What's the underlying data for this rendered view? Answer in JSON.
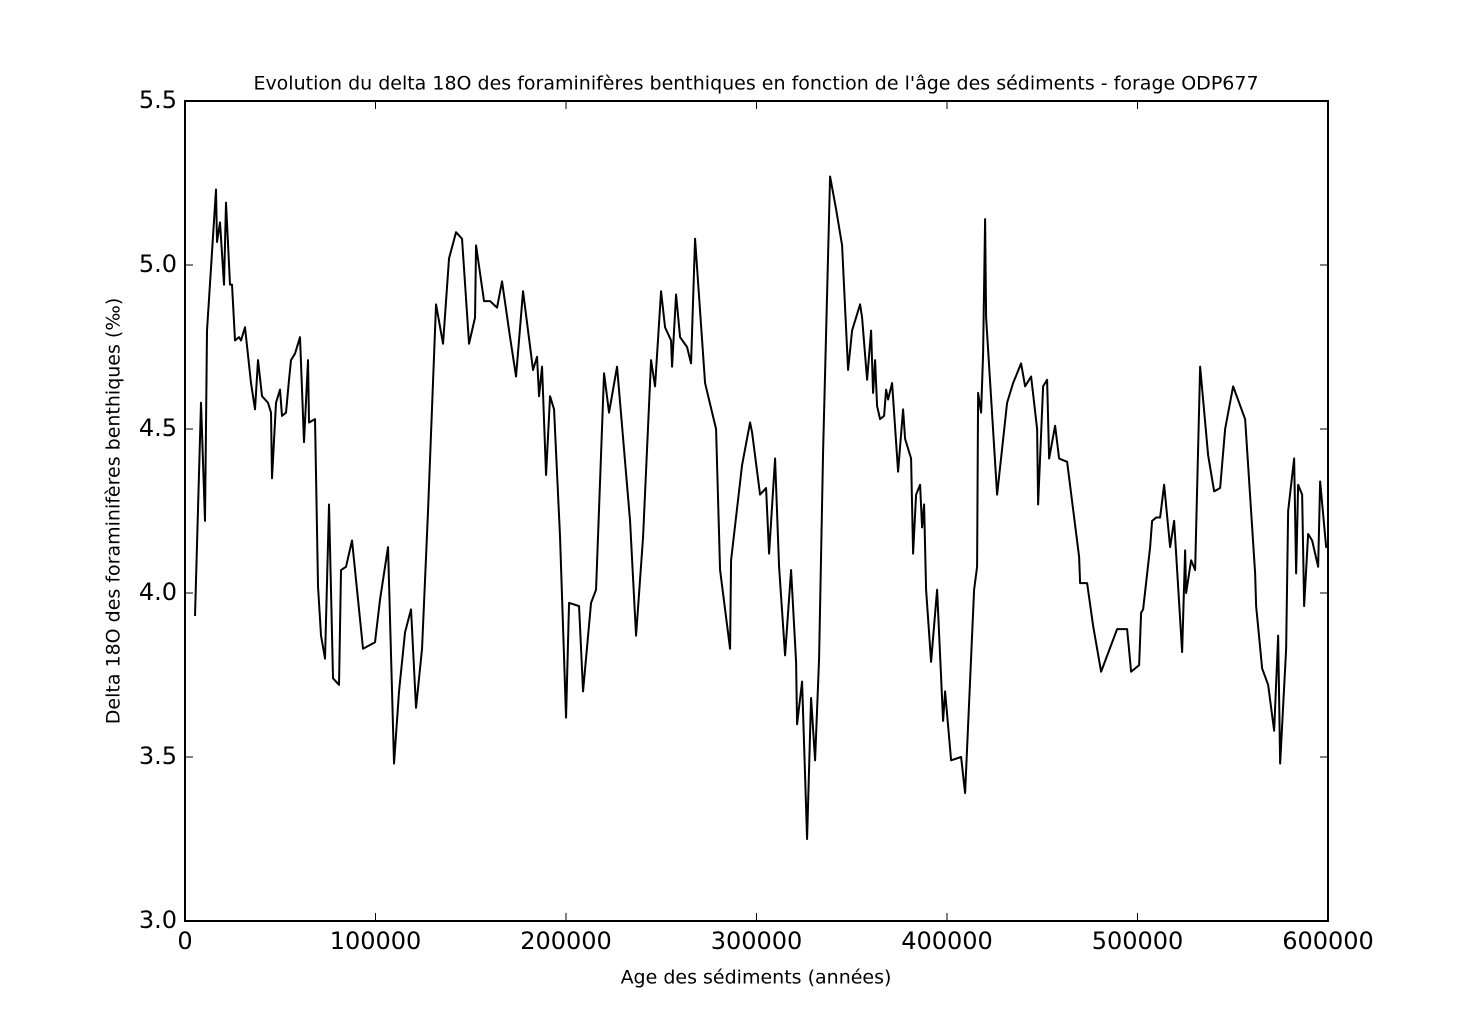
{
  "chart_data": {
    "type": "line",
    "title": "Evolution du delta 18O des foraminifères benthiques en fonction de l'âge des sédiments - forage ODP677",
    "x_label": "Age des sédiments (années)",
    "y_label": "Delta 18O des foraminifères benthiques (‰)",
    "xlim": [
      0,
      600000
    ],
    "ylim": [
      3.0,
      5.5
    ],
    "xticks": [
      0,
      100000,
      200000,
      300000,
      400000,
      500000,
      600000
    ],
    "yticks": [
      {
        "value": 3.0,
        "label": "3.0"
      },
      {
        "value": 3.5,
        "label": "3.5"
      },
      {
        "value": 4.0,
        "label": "4.0"
      },
      {
        "value": 4.5,
        "label": "4.5"
      },
      {
        "value": 5.0,
        "label": "5.0"
      },
      {
        "value": 5.5,
        "label": "5.5"
      }
    ],
    "grid": false,
    "series": [
      {
        "color": "#000000",
        "x": [
          5250,
          8400,
          10500,
          11550,
          16275,
          16800,
          18375,
          20475,
          21525,
          23625,
          24675,
          26250,
          28350,
          29400,
          31500,
          34650,
          36750,
          38325,
          40425,
          43575,
          45150,
          45675,
          47775,
          49875,
          50925,
          53025,
          54600,
          55650,
          57750,
          60375,
          62475,
          64575,
          65100,
          68250,
          69825,
          71400,
          73500,
          75600,
          77700,
          80850,
          81900,
          84525,
          87675,
          93450,
          99750,
          102375,
          106575,
          109725,
          112350,
          115500,
          118650,
          121275,
          124425,
          127575,
          131775,
          135450,
          138600,
          142275,
          145425,
          149100,
          152250,
          152775,
          156975,
          160125,
          163800,
          166425,
          170625,
          173775,
          177450,
          182700,
          184800,
          185850,
          187425,
          189525,
          191625,
          193725,
          196875,
          200025,
          201600,
          206850,
          208950,
          213150,
          215775,
          219975,
          222600,
          226800,
          233625,
          236775,
          240450,
          244650,
          246750,
          249900,
          252000,
          255150,
          255675,
          257775,
          259875,
          263550,
          265650,
          267750,
          273000,
          278775,
          280875,
          286125,
          286650,
          292425,
          296625,
          297675,
          301875,
          305025,
          306600,
          309750,
          311850,
          315000,
          318150,
          320775,
          321300,
          323925,
          326550,
          328650,
          330750,
          332850,
          334950,
          338625,
          341775,
          344925,
          348075,
          350175,
          354375,
          355425,
          358050,
          360150,
          361200,
          362250,
          363300,
          364875,
          366975,
          368025,
          369075,
          371175,
          374325,
          376950,
          378000,
          381150,
          382200,
          383775,
          385875,
          386925,
          387975,
          389025,
          391650,
          394800,
          397950,
          399000,
          402150,
          407400,
          409500,
          414225,
          415800,
          416325,
          417900,
          418950,
          420000,
          420525,
          426300,
          431550,
          434700,
          438900,
          441000,
          444150,
          447300,
          447825,
          450450,
          452550,
          453600,
          456750,
          458850,
          463050,
          469350,
          469875,
          473550,
          476700,
          480900,
          489300,
          494550,
          496650,
          500850,
          501900,
          502950,
          506625,
          507675,
          509775,
          511875,
          513975,
          517125,
          519225,
          523425,
          525000,
          525525,
          528150,
          530250,
          532875,
          537075,
          540225,
          543375,
          546000,
          550200,
          556500,
          561750,
          562275,
          565425,
          568575,
          571725,
          573825,
          574875,
          578025,
          579075,
          582225,
          583275,
          584325,
          586425,
          587475,
          589575,
          591675,
          594825,
          595875,
          599025,
          599500
        ],
        "values": [
          3.93,
          4.58,
          4.22,
          4.8,
          5.23,
          5.07,
          5.13,
          4.94,
          5.19,
          4.94,
          4.94,
          4.77,
          4.78,
          4.77,
          4.81,
          4.64,
          4.56,
          4.71,
          4.6,
          4.58,
          4.55,
          4.35,
          4.58,
          4.62,
          4.54,
          4.55,
          4.65,
          4.71,
          4.73,
          4.78,
          4.46,
          4.71,
          4.52,
          4.53,
          4.02,
          3.87,
          3.8,
          4.27,
          3.74,
          3.72,
          4.07,
          4.08,
          4.16,
          3.83,
          3.85,
          3.98,
          4.14,
          3.48,
          3.7,
          3.88,
          3.95,
          3.65,
          3.83,
          4.25,
          4.88,
          4.76,
          5.02,
          5.1,
          5.08,
          4.76,
          4.84,
          5.06,
          4.89,
          4.89,
          4.87,
          4.95,
          4.78,
          4.66,
          4.92,
          4.68,
          4.72,
          4.6,
          4.69,
          4.36,
          4.6,
          4.56,
          4.17,
          3.62,
          3.97,
          3.96,
          3.7,
          3.97,
          4.01,
          4.67,
          4.55,
          4.69,
          4.22,
          3.87,
          4.17,
          4.71,
          4.63,
          4.92,
          4.81,
          4.77,
          4.69,
          4.91,
          4.78,
          4.75,
          4.7,
          5.08,
          4.64,
          4.5,
          4.07,
          3.83,
          4.1,
          4.39,
          4.52,
          4.49,
          4.3,
          4.32,
          4.12,
          4.41,
          4.08,
          3.81,
          4.07,
          3.79,
          3.6,
          3.73,
          3.25,
          3.68,
          3.49,
          3.8,
          4.43,
          5.27,
          5.17,
          5.06,
          4.68,
          4.8,
          4.88,
          4.84,
          4.65,
          4.8,
          4.61,
          4.71,
          4.57,
          4.53,
          4.54,
          4.62,
          4.59,
          4.64,
          4.37,
          4.56,
          4.47,
          4.41,
          4.12,
          4.3,
          4.33,
          4.2,
          4.27,
          4.01,
          3.79,
          4.01,
          3.61,
          3.7,
          3.49,
          3.5,
          3.39,
          4.01,
          4.08,
          4.61,
          4.55,
          4.73,
          5.14,
          4.84,
          4.3,
          4.58,
          4.64,
          4.7,
          4.63,
          4.66,
          4.5,
          4.27,
          4.63,
          4.65,
          4.41,
          4.51,
          4.41,
          4.4,
          4.11,
          4.03,
          4.03,
          3.9,
          3.76,
          3.89,
          3.89,
          3.76,
          3.78,
          3.94,
          3.95,
          4.14,
          4.22,
          4.23,
          4.23,
          4.33,
          4.14,
          4.22,
          3.82,
          4.13,
          4.0,
          4.1,
          4.07,
          4.69,
          4.42,
          4.31,
          4.32,
          4.5,
          4.63,
          4.53,
          4.06,
          3.96,
          3.77,
          3.72,
          3.58,
          3.87,
          3.48,
          3.83,
          4.25,
          4.41,
          4.06,
          4.33,
          4.3,
          3.96,
          4.18,
          4.16,
          4.08,
          4.34,
          4.14,
          4.14
        ]
      }
    ]
  }
}
